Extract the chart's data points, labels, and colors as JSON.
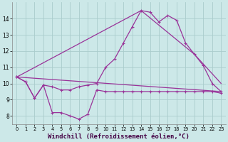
{
  "background_color": "#cce8e8",
  "grid_color": "#aacccc",
  "line_color": "#993399",
  "xlabel": "Windchill (Refroidissement éolien,°C)",
  "xlabel_fontsize": 6.5,
  "xlim": [
    -0.5,
    23.5
  ],
  "ylim": [
    7.5,
    15.0
  ],
  "yticks": [
    8,
    9,
    10,
    11,
    12,
    13,
    14
  ],
  "xticks": [
    0,
    1,
    2,
    3,
    4,
    5,
    6,
    7,
    8,
    9,
    10,
    11,
    12,
    13,
    14,
    15,
    16,
    17,
    18,
    19,
    20,
    21,
    22,
    23
  ],
  "series1_x": [
    0,
    1,
    2,
    3,
    4,
    5,
    6,
    7,
    8,
    9,
    10,
    11,
    12,
    13,
    14,
    15,
    16,
    17,
    18,
    19,
    20,
    21,
    22,
    23
  ],
  "series1_y": [
    10.4,
    10.1,
    9.1,
    9.9,
    8.2,
    8.2,
    8.0,
    7.8,
    8.1,
    9.6,
    9.5,
    9.5,
    9.5,
    9.5,
    9.5,
    9.5,
    9.5,
    9.5,
    9.5,
    9.5,
    9.5,
    9.5,
    9.5,
    9.4
  ],
  "series2_x": [
    0,
    1,
    2,
    3,
    4,
    5,
    6,
    7,
    8,
    9,
    10,
    11,
    12,
    13,
    14,
    15,
    16,
    17,
    18,
    19,
    20,
    21,
    22,
    23
  ],
  "series2_y": [
    10.4,
    10.1,
    9.1,
    9.9,
    9.8,
    9.6,
    9.6,
    9.8,
    9.9,
    10.0,
    11.0,
    11.5,
    12.5,
    13.5,
    14.5,
    14.4,
    13.8,
    14.2,
    13.9,
    12.5,
    11.8,
    11.1,
    10.0,
    9.5
  ],
  "series3_x": [
    0,
    23
  ],
  "series3_y": [
    10.4,
    9.5
  ],
  "series4_x": [
    0,
    14,
    20,
    23
  ],
  "series4_y": [
    10.4,
    14.5,
    11.8,
    10.0
  ]
}
